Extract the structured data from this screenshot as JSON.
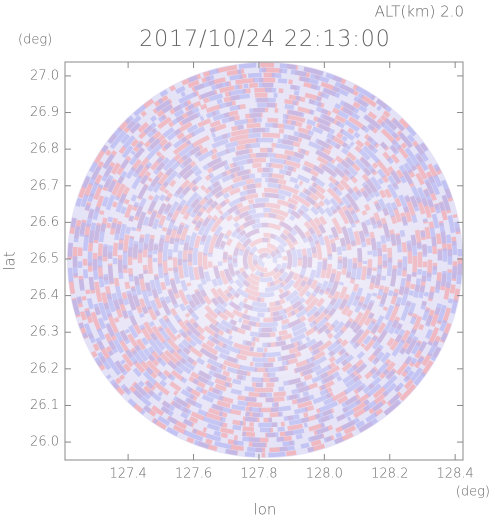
{
  "chart_data": {
    "type": "radar",
    "title": "2017/10/24 22:13:00",
    "subtitle": "ALT(km) 2.0",
    "x_label": "lon",
    "y_label": "lat",
    "x_unit": "(deg)",
    "y_unit": "(deg)",
    "xlim": [
      127.207,
      128.424
    ],
    "ylim": [
      25.951,
      27.038
    ],
    "xticks": [
      {
        "value": 127.4,
        "label": "127.4"
      },
      {
        "value": 127.6,
        "label": "127.6"
      },
      {
        "value": 127.8,
        "label": "127.8"
      },
      {
        "value": 128.0,
        "label": "128.0"
      },
      {
        "value": 128.2,
        "label": "128.2"
      },
      {
        "value": 128.4,
        "label": "128.4"
      }
    ],
    "yticks": [
      {
        "value": 26.0,
        "label": "26.0"
      },
      {
        "value": 26.1,
        "label": "26.1"
      },
      {
        "value": 26.2,
        "label": "26.2"
      },
      {
        "value": 26.3,
        "label": "26.3"
      },
      {
        "value": 26.4,
        "label": "26.4"
      },
      {
        "value": 26.5,
        "label": "26.5"
      },
      {
        "value": 26.6,
        "label": "26.6"
      },
      {
        "value": 26.7,
        "label": "26.7"
      },
      {
        "value": 26.8,
        "label": "26.8"
      },
      {
        "value": 26.9,
        "label": "26.9"
      },
      {
        "value": 27.0,
        "label": "27.0"
      }
    ]
  }
}
